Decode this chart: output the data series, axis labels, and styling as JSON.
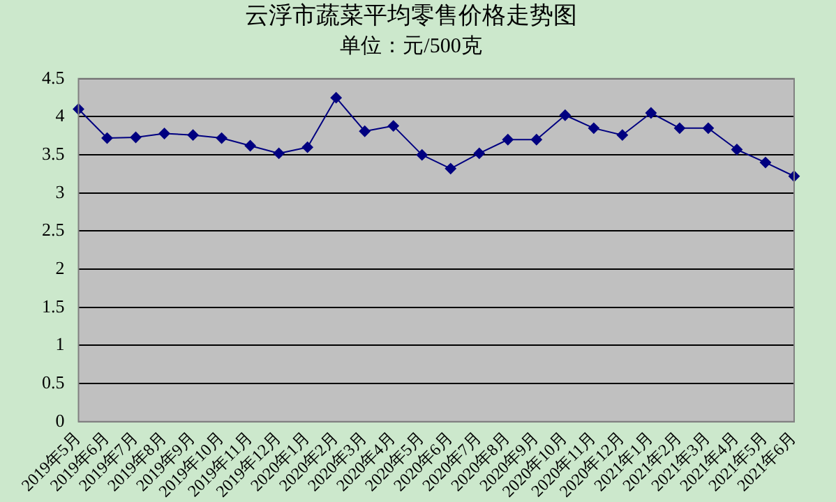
{
  "chart_data": {
    "type": "line",
    "title": "云浮市蔬菜平均零售价格走势图",
    "subtitle": "单位：元/500克",
    "categories": [
      "2019年5月",
      "2019年6月",
      "2019年7月",
      "2019年8月",
      "2019年9月",
      "2019年10月",
      "2019年11月",
      "2019年12月",
      "2020年1月",
      "2020年2月",
      "2020年3月",
      "2020年4月",
      "2020年5月",
      "2020年6月",
      "2020年7月",
      "2020年8月",
      "2020年9月",
      "2020年10月",
      "2020年11月",
      "2020年12月",
      "2021年1月",
      "2021年2月",
      "2021年3月",
      "2021年4月",
      "2021年5月",
      "2021年6月"
    ],
    "series": [
      {
        "color": "#000080",
        "values": [
          4.1,
          3.72,
          3.73,
          3.78,
          3.76,
          3.72,
          3.62,
          3.52,
          3.6,
          4.25,
          3.81,
          3.88,
          3.5,
          3.32,
          3.52,
          3.7,
          3.7,
          4.02,
          3.85,
          3.76,
          4.05,
          3.85,
          3.85,
          3.57,
          3.4,
          3.22
        ]
      }
    ],
    "ylim": [
      0,
      4.5
    ],
    "yticks": [
      0,
      0.5,
      1,
      1.5,
      2,
      2.5,
      3,
      3.5,
      4,
      4.5
    ],
    "grid": "y",
    "legend": false,
    "marker": "diamond",
    "line_style": "solid"
  }
}
